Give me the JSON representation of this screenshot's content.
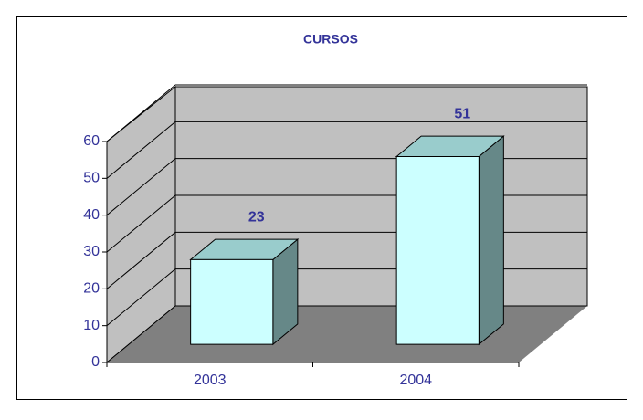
{
  "chart_data": {
    "type": "bar",
    "title": "CURSOS",
    "categories": [
      "2003",
      "2004"
    ],
    "values": [
      23,
      51
    ],
    "color": "#ccffff",
    "ylim": [
      0,
      60
    ],
    "yticks": [
      0,
      10,
      20,
      30,
      40,
      50,
      60
    ],
    "grid": true
  }
}
